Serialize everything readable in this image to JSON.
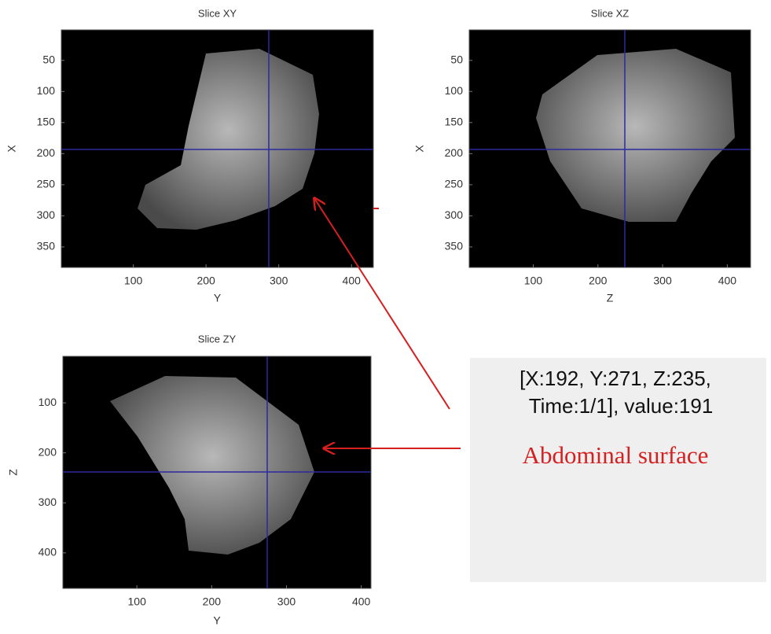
{
  "panels": [
    {
      "title": "Slice XY",
      "xlabel": "Y",
      "ylabel": "X",
      "xlim": [
        1,
        430
      ],
      "ylim": [
        1,
        383
      ],
      "xticks": [
        100,
        200,
        300,
        400
      ],
      "yticks": [
        50,
        100,
        150,
        200,
        250,
        300,
        350
      ]
    },
    {
      "title": "Slice XZ",
      "xlabel": "Z",
      "ylabel": "X",
      "xlim": [
        1,
        436
      ],
      "ylim": [
        1,
        383
      ],
      "xticks": [
        100,
        200,
        300,
        400
      ],
      "yticks": [
        50,
        100,
        150,
        200,
        250,
        300,
        350
      ]
    },
    {
      "title": "Slice ZY",
      "xlabel": "Y",
      "ylabel": "Z",
      "xlim": [
        1,
        413
      ],
      "ylim": [
        7,
        471
      ],
      "xticks": [
        100,
        200,
        300,
        400
      ],
      "yticks": [
        100,
        200,
        300,
        400
      ]
    }
  ],
  "info": {
    "lines": [
      "[X:192, Y:271, Z:235,",
      "Time:1/1], value:191"
    ]
  },
  "annotation": "Abdominal surface"
}
